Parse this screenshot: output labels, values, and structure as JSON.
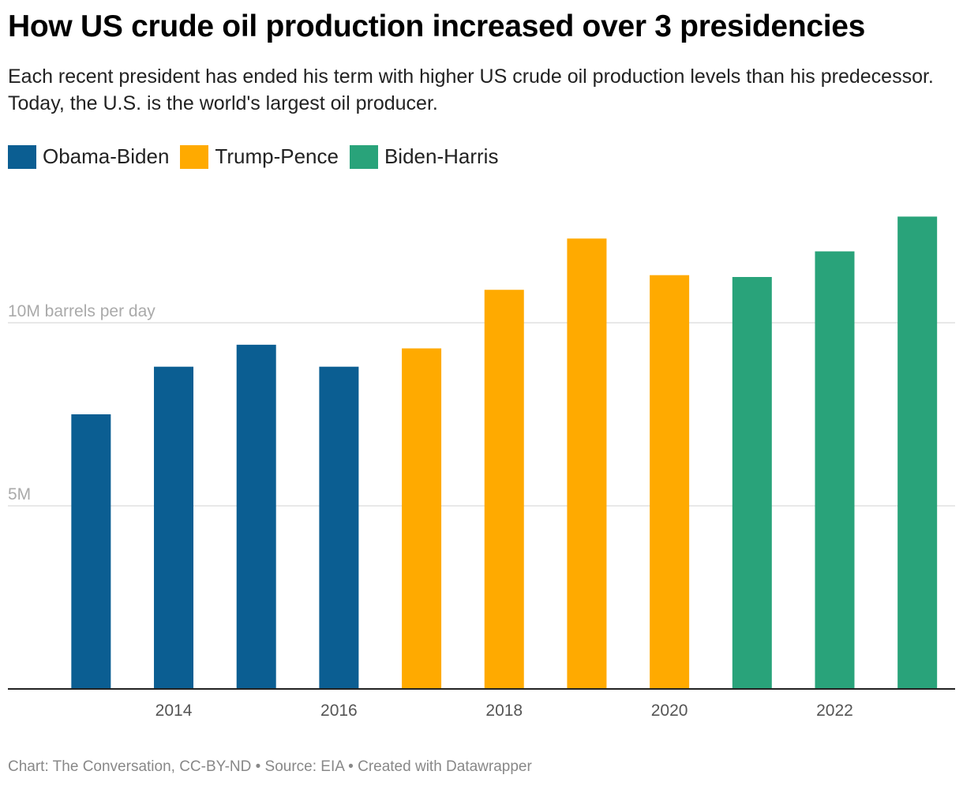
{
  "title": "How US crude oil production increased over 3 presidencies",
  "subtitle": "Each recent president has ended his term with higher US crude oil production levels than his predecessor. Today, the U.S. is the world's largest oil producer.",
  "footer": "Chart: The Conversation, CC-BY-ND • Source: EIA • Created with Datawrapper",
  "chart_data": {
    "type": "bar",
    "categories": [
      "2013",
      "2014",
      "2015",
      "2016",
      "2017",
      "2018",
      "2019",
      "2020",
      "2021",
      "2022",
      "2023"
    ],
    "values": [
      7.5,
      8.8,
      9.4,
      8.8,
      9.3,
      10.9,
      12.3,
      11.3,
      11.25,
      11.95,
      12.9
    ],
    "unit": "M barrels per day",
    "series_by_category": [
      "Obama-Biden",
      "Obama-Biden",
      "Obama-Biden",
      "Obama-Biden",
      "Trump-Pence",
      "Trump-Pence",
      "Trump-Pence",
      "Trump-Pence",
      "Biden-Harris",
      "Biden-Harris",
      "Biden-Harris"
    ],
    "legend": [
      {
        "name": "Obama-Biden",
        "color": "#0b5e92"
      },
      {
        "name": "Trump-Pence",
        "color": "#ffaa00"
      },
      {
        "name": "Biden-Harris",
        "color": "#29a37a"
      }
    ],
    "legend_position": "top-left",
    "y_ticks": [
      {
        "value": 5,
        "label": "5M"
      },
      {
        "value": 10,
        "label": "10M barrels per day"
      }
    ],
    "x_tick_labels": [
      "2014",
      "2016",
      "2018",
      "2020",
      "2022"
    ],
    "ylim": [
      0,
      13
    ],
    "grid": true
  }
}
